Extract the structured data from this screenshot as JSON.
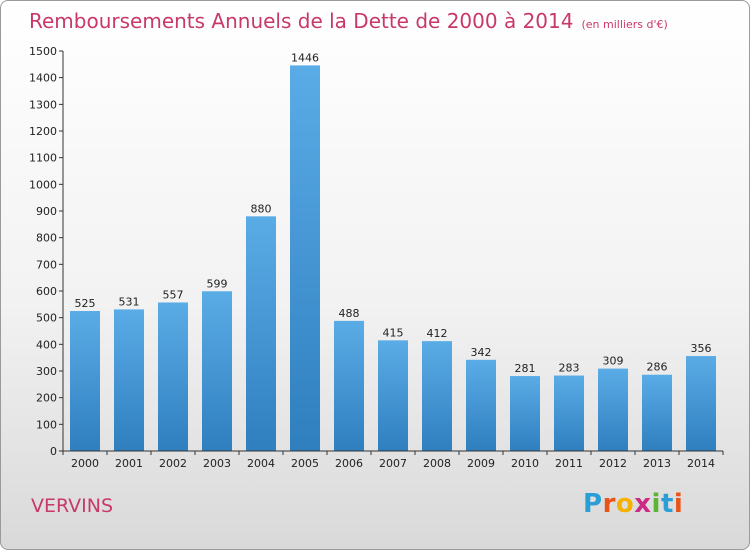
{
  "header": {
    "title": "Remboursements Annuels de la Dette de 2000 à 2014",
    "unit": "(en milliers d'€)"
  },
  "footer": {
    "city": "VERVINS",
    "logo_letters": [
      "P",
      "r",
      "o",
      "x",
      "i",
      "t",
      "i"
    ],
    "logo_colors": [
      "#2a9fd6",
      "#e8541a",
      "#f6b000",
      "#cc2a86",
      "#5ab535",
      "#2a9fd6",
      "#e8541a"
    ]
  },
  "colors": {
    "bar_top": "#5aace6",
    "bar_bottom": "#2f7fbf",
    "title": "#c8386a"
  },
  "chart_data": {
    "type": "bar",
    "title": "Remboursements Annuels de la Dette de 2000 à 2014",
    "xlabel": "",
    "ylabel": "",
    "ylim": [
      0,
      1500
    ],
    "yticks": [
      0,
      100,
      200,
      300,
      400,
      500,
      600,
      700,
      800,
      900,
      1000,
      1100,
      1200,
      1300,
      1400,
      1500
    ],
    "grid": false,
    "categories": [
      "2000",
      "2001",
      "2002",
      "2003",
      "2004",
      "2005",
      "2006",
      "2007",
      "2008",
      "2009",
      "2010",
      "2011",
      "2012",
      "2013",
      "2014"
    ],
    "values": [
      525,
      531,
      557,
      599,
      880,
      1446,
      488,
      415,
      412,
      342,
      281,
      283,
      309,
      286,
      356
    ]
  }
}
